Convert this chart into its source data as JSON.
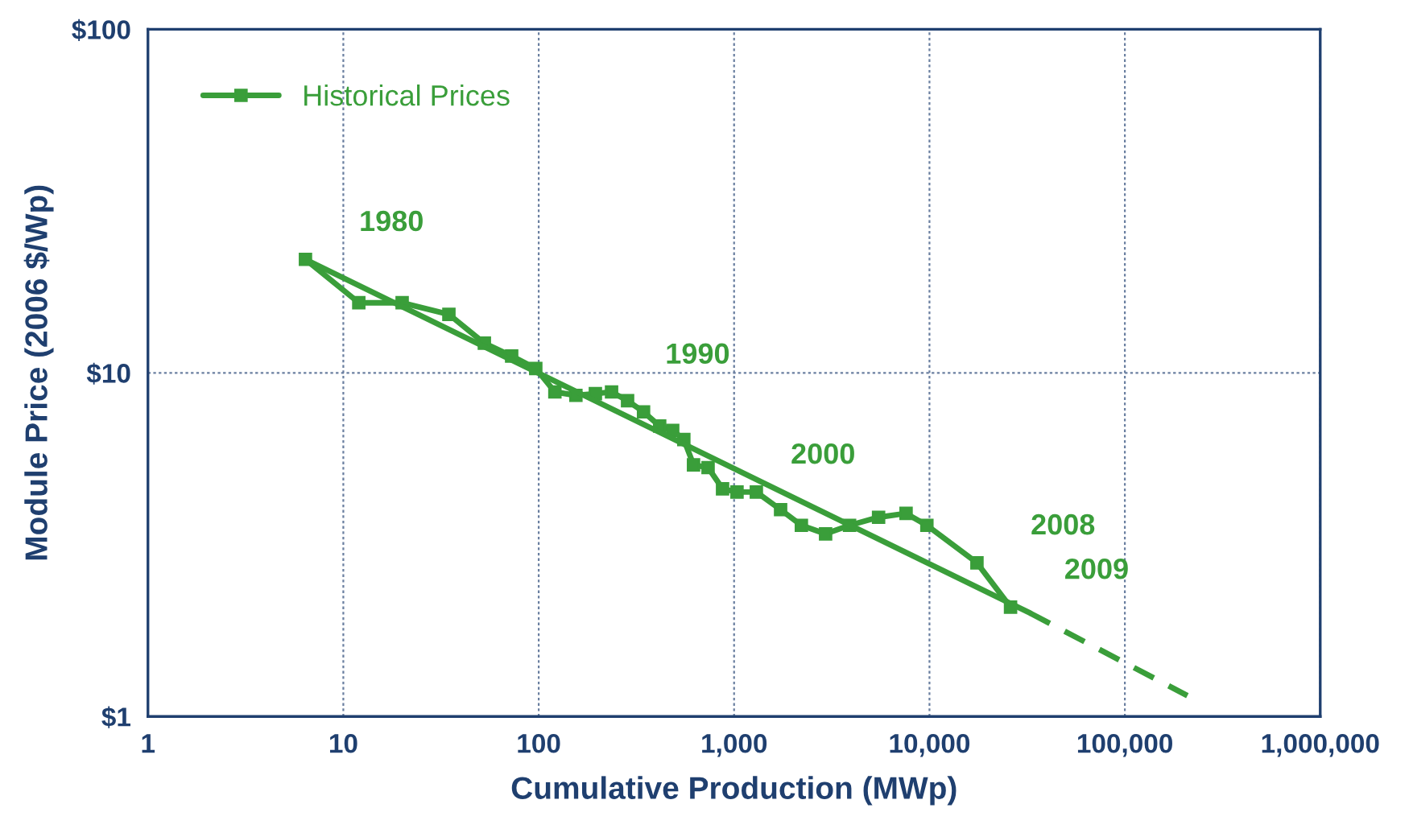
{
  "chart_data": {
    "type": "line",
    "xlabel": "Cumulative Production (MWp)",
    "ylabel": "Module Price (2006 $/Wp)",
    "log": "xy",
    "grid": true,
    "legend": "top left",
    "xlim": [
      1,
      1000000
    ],
    "xticks": [
      1,
      10,
      100,
      {
        "value": 1000,
        "label": "1,000"
      },
      {
        "value": 10000,
        "label": "10,000"
      },
      {
        "value": 100000,
        "label": "100,000"
      },
      {
        "value": 1000000,
        "label": "1,000,000"
      }
    ],
    "ylim": [
      1,
      100
    ],
    "yticks": [
      {
        "value": 1,
        "label": "$1"
      },
      {
        "value": 10,
        "label": "$10"
      },
      {
        "value": 100,
        "label": "$100"
      }
    ],
    "series": [
      {
        "name": "Historical Prices",
        "color": "#3a9e3a",
        "marker": "square",
        "line_style": "solid",
        "x": [
          6.4,
          12,
          20,
          34.7,
          52.7,
          72.7,
          96.6,
          121,
          155,
          195,
          236,
          285,
          344,
          416,
          485,
          553,
          620,
          736,
          873,
          1035,
          1300,
          1730,
          2210,
          2940,
          3900,
          5490,
          7590,
          9700,
          17500,
          26000
        ],
        "values": [
          21.4,
          16.0,
          16.0,
          14.8,
          12.2,
          11.2,
          10.3,
          8.8,
          8.6,
          8.7,
          8.8,
          8.3,
          7.7,
          7.0,
          6.8,
          6.4,
          5.4,
          5.3,
          4.6,
          4.5,
          4.5,
          4.0,
          3.6,
          3.4,
          3.6,
          3.8,
          3.9,
          3.6,
          2.8,
          2.08
        ]
      },
      {
        "color": "#3a9e3a",
        "marker": "none",
        "line_style": "solid",
        "x": [
          6.4,
          32700
        ],
        "values": [
          21.4,
          2.0
        ]
      },
      {
        "color": "#3a9e3a",
        "marker": "none",
        "line_style": "dashed",
        "x": [
          32700,
          209000
        ],
        "values": [
          2.0,
          1.15
        ]
      }
    ],
    "annotations": [
      {
        "text": "1980",
        "x": 6.4,
        "y": 21.4
      },
      {
        "text": "1990",
        "x": 236,
        "y": 8.8
      },
      {
        "text": "2000",
        "x": 1035,
        "y": 4.5
      },
      {
        "text": "2008",
        "x": 17500,
        "y": 2.8
      },
      {
        "text": "2009",
        "x": 26000,
        "y": 2.08
      }
    ]
  }
}
